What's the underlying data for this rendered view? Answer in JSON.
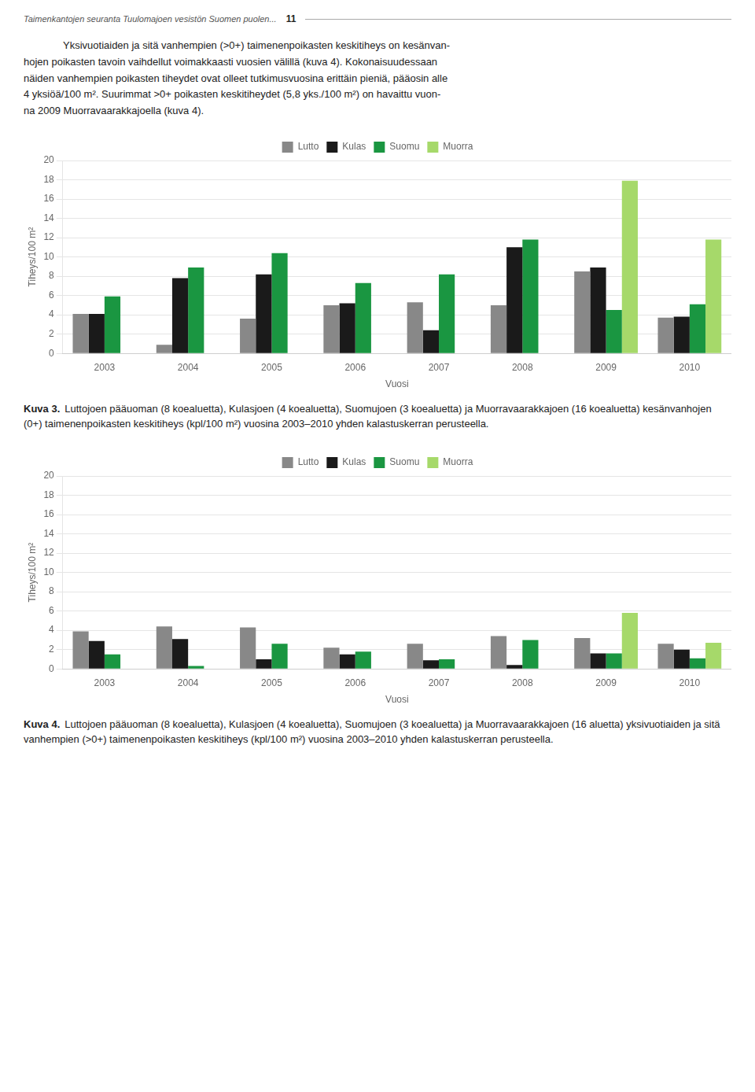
{
  "header": [
    "Taimenkantojen seuranta Tuulomajoen vesistön Suomen puolen...",
    "11"
  ],
  "intro": [
    "Yksivuotiaiden ja sitä vanhempien (>0+) taimenenpoikasten keskitiheys on kesänvan-",
    "hojen poikasten tavoin vaihdellut voimakkaasti vuosien välillä (kuva 4). Kokonaisuudessaan",
    "näiden vanhempien poikasten tiheydet ovat olleet tutkimusvuosina erittäin pieniä, pääosin alle",
    "4 yksiöä/100 m². Suurimmat >0+ poikasten keskitiheydet (5,8 yks./100 m²) on havaittu vuon-",
    "na 2009 Muorravaarakkajoella (kuva 4)."
  ],
  "chart_data": [
    {
      "type": "bar",
      "categories": [
        "2003",
        "2004",
        "2005",
        "2006",
        "2007",
        "2008",
        "2009",
        "2010"
      ],
      "series": [
        {
          "name": "Lutto",
          "color": "#888888",
          "values": [
            4.1,
            0.9,
            3.6,
            5.0,
            5.3,
            5.0,
            8.5,
            3.7
          ]
        },
        {
          "name": "Kulas",
          "color": "#1a1a1a",
          "values": [
            4.1,
            7.8,
            8.2,
            5.2,
            2.4,
            11.0,
            8.9,
            3.8
          ]
        },
        {
          "name": "Suomu",
          "color": "#1a9641",
          "values": [
            5.9,
            8.9,
            10.4,
            7.3,
            8.2,
            11.8,
            4.5,
            5.1
          ]
        },
        {
          "name": "Muorra",
          "color": "#a6d96a",
          "values": [
            0.0,
            0.0,
            0.0,
            0.0,
            0.0,
            0.0,
            17.9,
            11.8
          ]
        }
      ],
      "ylabel": "Tiheys/100 m²",
      "xlabel": "Vuosi",
      "ylim": [
        0,
        20
      ],
      "yticks": [
        0,
        2,
        4,
        6,
        8,
        10,
        12,
        14,
        16,
        18,
        20
      ],
      "grid": true,
      "legend": "top",
      "annotations": [
        "Kuva 3.",
        "Luttojoen pääuoman (8 koealuetta), Kulasjoen (4 koealuetta), Suomujoen (3 koealuetta) ja Muorravaarakkajoen (16 koealuetta) kesänvanhojen (0+) taimenenpoikasten keskitiheys (kpl/100 m²) vuosina 2003–2010 yhden kalastuskerran perusteella."
      ]
    },
    {
      "type": "bar",
      "categories": [
        "2003",
        "2004",
        "2005",
        "2006",
        "2007",
        "2008",
        "2009",
        "2010"
      ],
      "series": [
        {
          "name": "Lutto",
          "color": "#888888",
          "values": [
            3.9,
            4.4,
            4.3,
            2.2,
            2.6,
            3.4,
            3.2,
            2.6
          ]
        },
        {
          "name": "Kulas",
          "color": "#1a1a1a",
          "values": [
            2.9,
            3.1,
            1.0,
            1.5,
            0.9,
            0.4,
            1.6,
            2.0
          ]
        },
        {
          "name": "Suomu",
          "color": "#1a9641",
          "values": [
            1.5,
            0.3,
            2.6,
            1.8,
            1.0,
            3.0,
            1.6,
            1.1
          ]
        },
        {
          "name": "Muorra",
          "color": "#a6d96a",
          "values": [
            0.0,
            0.0,
            0.0,
            0.0,
            0.0,
            0.0,
            5.8,
            2.7
          ]
        }
      ],
      "ylabel": "Tiheys/100 m²",
      "xlabel": "Vuosi",
      "ylim": [
        0,
        20
      ],
      "yticks": [
        0,
        2,
        4,
        6,
        8,
        10,
        12,
        14,
        16,
        18,
        20
      ],
      "grid": true,
      "legend": "top",
      "annotations": [
        "Kuva 4.",
        "Luttojoen pääuoman (8 koealuetta), Kulasjoen (4 koealuetta), Suomujoen (3 koealuetta) ja Muorravaarakkajoen (16 aluetta) yksivuotiaiden ja sitä vanhempien (>0+) taimenenpoikasten keskitiheys (kpl/100 m²) vuosina 2003–2010 yhden kalastuskerran perusteella."
      ]
    }
  ]
}
